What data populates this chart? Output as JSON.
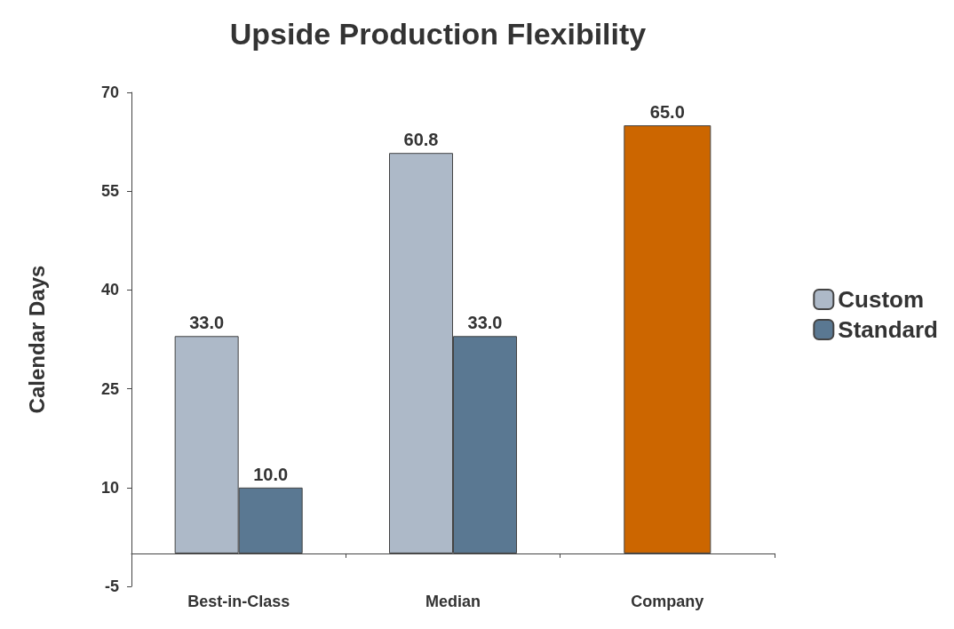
{
  "chart_data": {
    "type": "bar",
    "title": "Upside Production Flexibility",
    "ylabel": "Calendar Days",
    "categories": [
      "Best-in-Class",
      "Median",
      "Company"
    ],
    "series": [
      {
        "name": "Custom",
        "color": "#adb9c8",
        "values": [
          33.0,
          60.8,
          null
        ],
        "value_labels": [
          "33.0",
          "60.8",
          null
        ]
      },
      {
        "name": "Standard",
        "color": "#5a7892",
        "values": [
          10.0,
          33.0,
          null
        ],
        "value_labels": [
          "10.0",
          "33.0",
          null
        ]
      },
      {
        "color": "#cc6600",
        "values": [
          null,
          null,
          65.0
        ],
        "value_labels": [
          null,
          null,
          "65.0"
        ]
      }
    ],
    "ylim": [
      -5,
      70
    ],
    "yticks": [
      -5,
      10,
      25,
      40,
      55,
      70
    ],
    "grid": false,
    "legend": "right"
  }
}
